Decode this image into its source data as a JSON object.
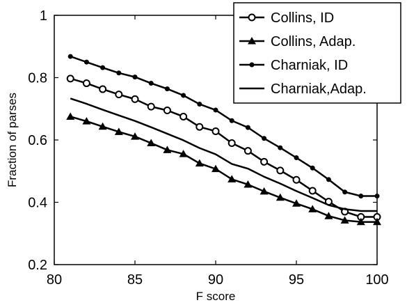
{
  "chart_data": {
    "type": "line",
    "xlabel": "F score",
    "ylabel": "Fraction of parses",
    "xlim": [
      80,
      100
    ],
    "ylim": [
      0.2,
      1
    ],
    "xticks": [
      "80",
      "85",
      "90",
      "95",
      "100"
    ],
    "yticks": [
      "0.2",
      "0.4",
      "0.6",
      "0.8",
      "1"
    ],
    "grid": false,
    "legend_position": "top-right",
    "x": [
      81,
      82,
      83,
      84,
      85,
      86,
      87,
      88,
      89,
      90,
      91,
      92,
      93,
      94,
      95,
      96,
      97,
      98,
      99,
      100
    ],
    "series": [
      {
        "name": "Collins, ID",
        "marker": "circle-open",
        "values": [
          0.797,
          0.782,
          0.763,
          0.746,
          0.731,
          0.707,
          0.695,
          0.675,
          0.642,
          0.628,
          0.59,
          0.565,
          0.53,
          0.502,
          0.472,
          0.437,
          0.402,
          0.37,
          0.353,
          0.353
        ]
      },
      {
        "name": "Collins, Adap.",
        "marker": "triangle",
        "values": [
          0.675,
          0.66,
          0.643,
          0.626,
          0.611,
          0.59,
          0.568,
          0.555,
          0.525,
          0.507,
          0.474,
          0.457,
          0.435,
          0.415,
          0.396,
          0.378,
          0.356,
          0.342,
          0.337,
          0.337
        ]
      },
      {
        "name": "Charniak, ID",
        "marker": "dot",
        "values": [
          0.868,
          0.85,
          0.832,
          0.815,
          0.802,
          0.782,
          0.764,
          0.743,
          0.715,
          0.696,
          0.662,
          0.64,
          0.605,
          0.575,
          0.543,
          0.51,
          0.473,
          0.433,
          0.42,
          0.42
        ]
      },
      {
        "name": "Charniak,Adap.",
        "marker": "none",
        "values": [
          0.733,
          0.716,
          0.697,
          0.679,
          0.661,
          0.641,
          0.62,
          0.599,
          0.574,
          0.554,
          0.523,
          0.508,
          0.482,
          0.46,
          0.436,
          0.414,
          0.391,
          0.378,
          0.372,
          0.372
        ]
      }
    ]
  }
}
